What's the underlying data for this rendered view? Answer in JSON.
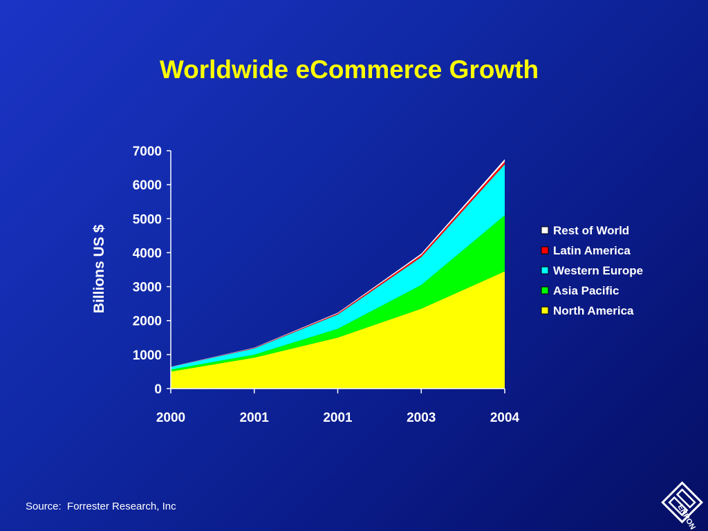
{
  "chart_data": {
    "type": "area",
    "stacked": true,
    "title": "Worldwide eCommerce Growth",
    "ylabel": "Billions US $",
    "xlabel": "",
    "categories": [
      "2000",
      "2001",
      "2001",
      "2003",
      "2004"
    ],
    "ylim": [
      0,
      7000
    ],
    "yticks": [
      0,
      1000,
      2000,
      3000,
      4000,
      5000,
      6000,
      7000
    ],
    "series": [
      {
        "name": "North America",
        "color": "#ffff00",
        "values": [
          500,
          910,
          1500,
          2350,
          3450
        ]
      },
      {
        "name": "Asia Pacific",
        "color": "#00ff00",
        "values": [
          60,
          90,
          260,
          700,
          1650
        ]
      },
      {
        "name": "Western Europe",
        "color": "#00ffff",
        "values": [
          70,
          180,
          420,
          820,
          1500
        ]
      },
      {
        "name": "Latin America",
        "color": "#ff0000",
        "values": [
          5,
          15,
          30,
          60,
          80
        ]
      },
      {
        "name": "Rest of World",
        "color": "#ffffff",
        "values": [
          5,
          10,
          20,
          40,
          70
        ]
      }
    ],
    "legend_position": "right",
    "legend_order": [
      "Rest of World",
      "Latin America",
      "Western Europe",
      "Asia Pacific",
      "North America"
    ],
    "grid": false
  },
  "source": "Source:  Forrester Research, Inc",
  "logo": {
    "icon": "enron-logo-icon",
    "text": "ENRON"
  }
}
